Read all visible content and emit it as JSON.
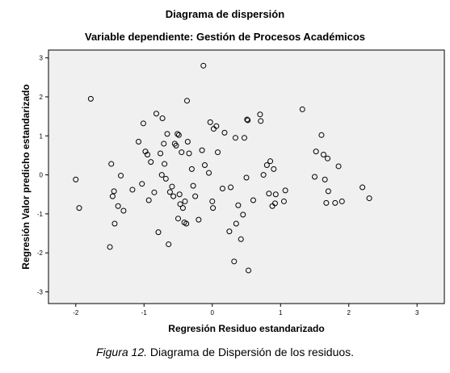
{
  "figure": {
    "title": "Diagrama de dispersión",
    "subtitle": "Variable dependiente: Gestión de Procesos Académicos",
    "caption_label": "Figura 12.",
    "caption_text": " Diagrama de Dispersión de los residuos."
  },
  "chart_data": {
    "type": "scatter",
    "title": "Diagrama de dispersión",
    "subtitle": "Variable dependiente: Gestión de Procesos Académicos",
    "xlabel": "Regresión Residuo estandarizado",
    "ylabel": "Regresión Valor predicho estandarizado",
    "xlim": [
      -2.4,
      3.4
    ],
    "ylim": [
      -3.3,
      3.2
    ],
    "xticks": [
      -2,
      -1,
      0,
      1,
      2,
      3
    ],
    "yticks": [
      -3,
      -2,
      -1,
      0,
      1,
      2,
      3
    ],
    "grid": false,
    "legend": "none",
    "marker": "hollow-circle",
    "plot_bg_color": "#f0f0f0",
    "point_color": "#000000",
    "points": [
      [
        -2.0,
        -0.12
      ],
      [
        -1.95,
        -0.85
      ],
      [
        -1.78,
        1.95
      ],
      [
        -1.5,
        -1.85
      ],
      [
        -1.48,
        0.28
      ],
      [
        -1.46,
        -0.55
      ],
      [
        -1.44,
        -0.42
      ],
      [
        -1.43,
        -1.25
      ],
      [
        -1.38,
        -0.8
      ],
      [
        -1.34,
        -0.02
      ],
      [
        -1.3,
        -0.92
      ],
      [
        -1.17,
        -0.38
      ],
      [
        -1.08,
        0.85
      ],
      [
        -1.03,
        -0.23
      ],
      [
        -1.01,
        1.32
      ],
      [
        -0.98,
        0.6
      ],
      [
        -0.95,
        0.52
      ],
      [
        -0.93,
        -0.65
      ],
      [
        -0.9,
        0.33
      ],
      [
        -0.85,
        -0.45
      ],
      [
        -0.82,
        1.57
      ],
      [
        -0.79,
        -1.47
      ],
      [
        -0.76,
        0.55
      ],
      [
        -0.74,
        0.0
      ],
      [
        -0.73,
        1.45
      ],
      [
        -0.71,
        0.8
      ],
      [
        -0.7,
        0.28
      ],
      [
        -0.68,
        -0.1
      ],
      [
        -0.66,
        1.05
      ],
      [
        -0.64,
        -1.78
      ],
      [
        -0.62,
        -0.44
      ],
      [
        -0.59,
        -0.3
      ],
      [
        -0.57,
        -0.55
      ],
      [
        -0.55,
        0.8
      ],
      [
        -0.53,
        0.75
      ],
      [
        -0.51,
        1.05
      ],
      [
        -0.5,
        -1.12
      ],
      [
        -0.49,
        1.02
      ],
      [
        -0.48,
        -0.5
      ],
      [
        -0.47,
        -0.75
      ],
      [
        -0.45,
        0.58
      ],
      [
        -0.43,
        -0.85
      ],
      [
        -0.41,
        -1.22
      ],
      [
        -0.4,
        -0.68
      ],
      [
        -0.38,
        -1.25
      ],
      [
        -0.37,
        1.9
      ],
      [
        -0.36,
        0.85
      ],
      [
        -0.34,
        0.55
      ],
      [
        -0.3,
        0.15
      ],
      [
        -0.28,
        -0.28
      ],
      [
        -0.25,
        -0.55
      ],
      [
        -0.2,
        -1.15
      ],
      [
        -0.15,
        0.63
      ],
      [
        -0.13,
        2.8
      ],
      [
        -0.11,
        0.25
      ],
      [
        -0.05,
        0.05
      ],
      [
        -0.03,
        1.35
      ],
      [
        0.0,
        -0.68
      ],
      [
        0.01,
        -0.85
      ],
      [
        0.02,
        1.18
      ],
      [
        0.06,
        1.25
      ],
      [
        0.08,
        0.58
      ],
      [
        0.15,
        -0.35
      ],
      [
        0.18,
        1.08
      ],
      [
        0.25,
        -1.45
      ],
      [
        0.27,
        -0.32
      ],
      [
        0.32,
        -2.22
      ],
      [
        0.34,
        0.95
      ],
      [
        0.35,
        -1.25
      ],
      [
        0.38,
        -0.78
      ],
      [
        0.42,
        -1.65
      ],
      [
        0.45,
        -1.02
      ],
      [
        0.47,
        0.95
      ],
      [
        0.5,
        -0.07
      ],
      [
        0.51,
        1.42
      ],
      [
        0.52,
        1.4
      ],
      [
        0.53,
        -2.45
      ],
      [
        0.6,
        -0.65
      ],
      [
        0.7,
        1.55
      ],
      [
        0.71,
        1.38
      ],
      [
        0.75,
        0.0
      ],
      [
        0.8,
        0.25
      ],
      [
        0.83,
        -0.48
      ],
      [
        0.85,
        0.35
      ],
      [
        0.88,
        -0.8
      ],
      [
        0.9,
        0.15
      ],
      [
        0.92,
        -0.73
      ],
      [
        0.93,
        -0.5
      ],
      [
        1.05,
        -0.68
      ],
      [
        1.07,
        -0.4
      ],
      [
        1.32,
        1.68
      ],
      [
        1.5,
        -0.05
      ],
      [
        1.52,
        0.6
      ],
      [
        1.6,
        1.02
      ],
      [
        1.63,
        0.52
      ],
      [
        1.65,
        -0.12
      ],
      [
        1.67,
        -0.72
      ],
      [
        1.69,
        0.42
      ],
      [
        1.7,
        -0.42
      ],
      [
        1.8,
        -0.72
      ],
      [
        1.85,
        0.22
      ],
      [
        1.9,
        -0.68
      ],
      [
        2.2,
        -0.32
      ],
      [
        2.3,
        -0.6
      ]
    ]
  }
}
